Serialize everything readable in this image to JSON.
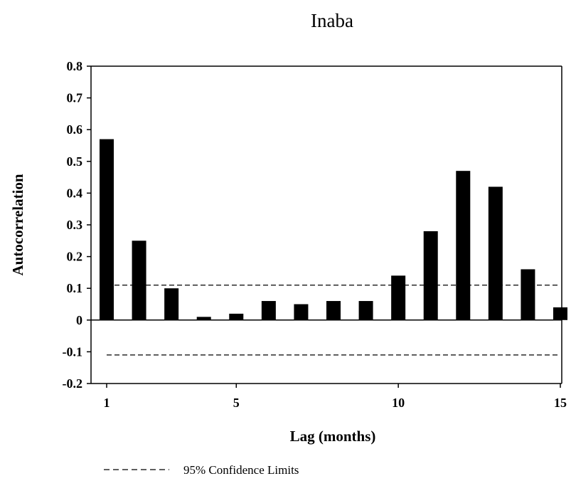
{
  "chart_data": {
    "type": "bar",
    "title": "Inaba",
    "xlabel": "Lag (months)",
    "ylabel": "Autocorrelation",
    "x_ticks": [
      "1",
      "5",
      "10",
      "15"
    ],
    "y_ticks": [
      "0.8",
      "0.7",
      "0.6",
      "0.5",
      "0.4",
      "0.3",
      "0.2",
      "0.1",
      "0",
      "-0.1",
      "-0.2"
    ],
    "ylim": [
      -0.2,
      0.8
    ],
    "xlim": [
      0.5,
      15.2
    ],
    "categories": [
      1,
      2,
      3,
      4,
      5,
      6,
      7,
      8,
      9,
      10,
      11,
      12,
      13,
      14,
      15
    ],
    "values": [
      0.57,
      0.25,
      0.1,
      0.01,
      0.02,
      0.06,
      0.05,
      0.06,
      0.06,
      0.14,
      0.28,
      0.47,
      0.42,
      0.16,
      0.04
    ],
    "confidence_limits": {
      "upper": 0.11,
      "lower": -0.11,
      "style": "dashed"
    },
    "legend": {
      "label": "95% Confidence Limits",
      "position": "bottom-left"
    },
    "bar_color": "#000000"
  }
}
